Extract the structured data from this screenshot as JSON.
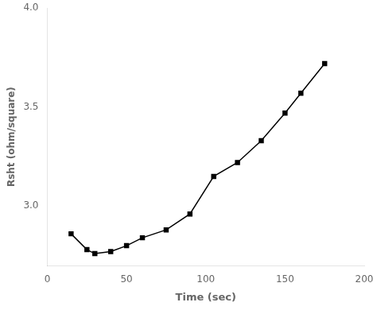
{
  "chart_data": {
    "type": "line",
    "x": [
      15,
      25,
      30,
      40,
      50,
      60,
      75,
      90,
      105,
      120,
      135,
      150,
      160,
      175
    ],
    "values": [
      2.86,
      2.78,
      2.76,
      2.77,
      2.8,
      2.84,
      2.88,
      2.96,
      3.15,
      3.22,
      3.33,
      3.47,
      3.57,
      3.72
    ],
    "xlabel": "Time (sec)",
    "ylabel": "Rsht (ohm/square)",
    "xlim": [
      0,
      200
    ],
    "ylim": [
      2.7,
      4.0
    ],
    "xticks": [
      0,
      50,
      100,
      150,
      200
    ],
    "yticks": [
      {
        "value": 3,
        "label": "3.0"
      },
      3.5,
      {
        "value": 4,
        "label": "4.0"
      }
    ],
    "color": "#000000",
    "marker": "square",
    "grid": false
  }
}
